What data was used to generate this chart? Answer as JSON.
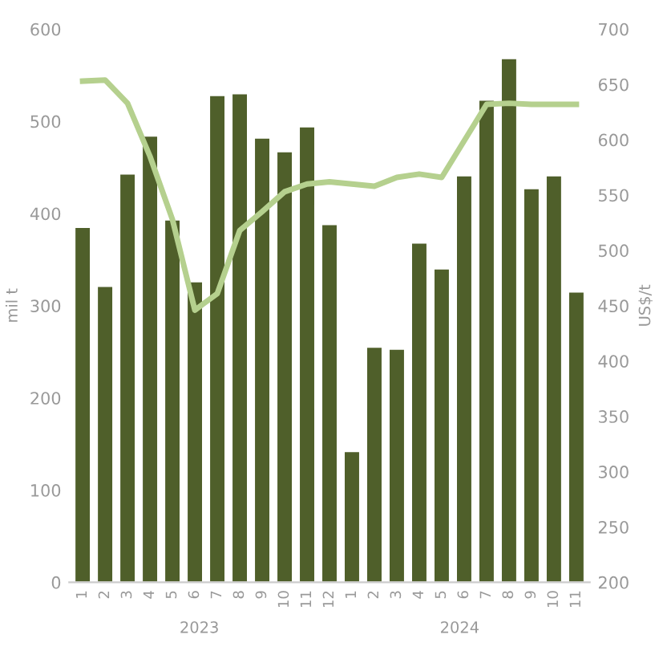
{
  "chart_data": {
    "type": "bar",
    "ylabel": "mil t",
    "y2label": "US$/t",
    "categories": [
      "1",
      "2",
      "3",
      "4",
      "5",
      "6",
      "7",
      "8",
      "9",
      "10",
      "11",
      "12",
      "1",
      "2",
      "3",
      "4",
      "5",
      "6",
      "7",
      "8",
      "9",
      "10",
      "11"
    ],
    "series": [
      {
        "color": "#4f5f2a",
        "values": [
          385,
          321,
          443,
          484,
          393,
          326,
          528,
          530,
          482,
          467,
          494,
          388,
          142,
          255,
          253,
          368,
          340,
          441,
          523,
          568,
          427,
          441,
          315
        ]
      },
      {
        "type": "line",
        "axis": "y2",
        "color": "#b5d08e",
        "values": [
          653,
          654,
          633,
          585,
          528,
          446,
          461,
          518,
          535,
          553,
          560,
          562,
          560,
          558,
          566,
          569,
          566,
          599,
          632,
          633,
          632,
          632,
          632
        ]
      }
    ],
    "ylim": [
      0,
      600
    ],
    "yticks": [
      0,
      100,
      200,
      300,
      400,
      500,
      600
    ],
    "y2lim": [
      200,
      700
    ],
    "y2ticks": [
      200,
      250,
      300,
      350,
      400,
      450,
      500,
      550,
      600,
      650,
      700
    ],
    "annotations": [
      "2023",
      "2024"
    ],
    "grid": false,
    "legend": false
  }
}
